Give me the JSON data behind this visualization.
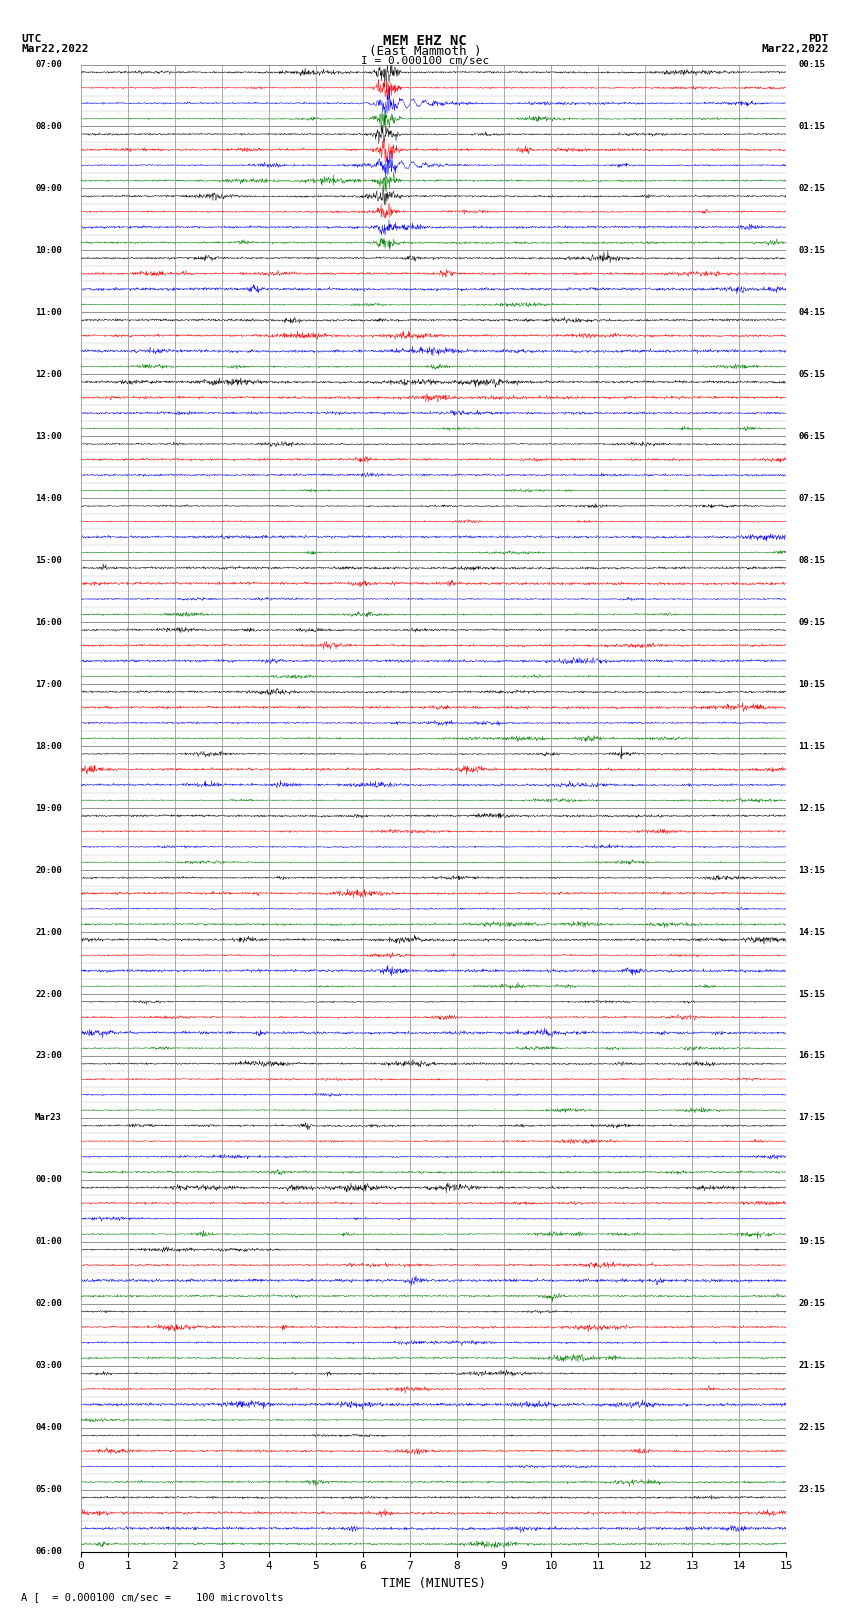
{
  "title_line1": "MEM EHZ NC",
  "title_line2": "(East Mammoth )",
  "title_line3": "I = 0.000100 cm/sec",
  "label_utc": "UTC",
  "label_pdt": "PDT",
  "date_left": "Mar22,2022",
  "date_right": "Mar22,2022",
  "xlabel": "TIME (MINUTES)",
  "footnote": "A [  = 0.000100 cm/sec =    100 microvolts",
  "bg_color": "#ffffff",
  "grid_color": "#888888",
  "colors": [
    "black",
    "red",
    "blue",
    "green"
  ],
  "num_groups": 12,
  "traces_per_group": 4,
  "minutes": 15,
  "amplitude_scale": 0.32,
  "utc_labels": [
    "07:00",
    "08:00",
    "09:00",
    "10:00",
    "11:00",
    "12:00",
    "13:00",
    "14:00",
    "15:00",
    "16:00",
    "17:00",
    "18:00",
    "19:00",
    "20:00",
    "21:00",
    "22:00",
    "23:00",
    "Mar23",
    "00:00",
    "01:00",
    "02:00",
    "03:00",
    "04:00",
    "05:00",
    "06:00"
  ],
  "pdt_labels": [
    "00:15",
    "01:15",
    "02:15",
    "03:15",
    "04:15",
    "05:15",
    "06:15",
    "07:15",
    "08:15",
    "09:15",
    "10:15",
    "11:15",
    "12:15",
    "13:15",
    "14:15",
    "15:15",
    "16:15",
    "17:15",
    "18:15",
    "19:15",
    "20:15",
    "21:15",
    "22:15",
    "23:15"
  ],
  "seed": 1234,
  "num_rows": 96
}
